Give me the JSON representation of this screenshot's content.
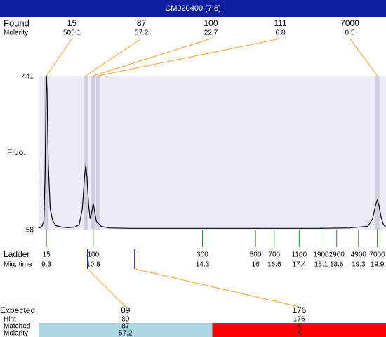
{
  "title": "CM020400 (7:8)",
  "found": {
    "label": "Found",
    "molarity_label": "Molarity",
    "sizes": [
      15,
      87,
      100,
      111,
      7000
    ],
    "molarities": [
      505.1,
      57.2,
      22.7,
      6.8,
      0.5
    ],
    "mig_times": [
      9.3,
      10.56,
      10.8,
      10.96,
      19.9
    ],
    "color": "#f0a030"
  },
  "chart_data": {
    "type": "line",
    "y_label": "Fluo.",
    "x": [
      9.05,
      9.15,
      9.22,
      9.26,
      9.29,
      9.3,
      9.32,
      9.36,
      9.42,
      9.5,
      9.6,
      9.8,
      10.0,
      10.2,
      10.35,
      10.45,
      10.52,
      10.56,
      10.6,
      10.65,
      10.7,
      10.75,
      10.8,
      10.84,
      10.9,
      10.96,
      11.05,
      11.3,
      12,
      13,
      14,
      15,
      16,
      17,
      18,
      19,
      19.6,
      19.75,
      19.85,
      19.9,
      19.95,
      20.02,
      20.1,
      20.18
    ],
    "values": [
      62,
      64,
      80,
      200,
      420,
      441,
      400,
      220,
      110,
      80,
      68,
      64,
      63,
      64,
      70,
      110,
      190,
      219,
      190,
      120,
      85,
      100,
      123,
      105,
      78,
      74,
      66,
      62,
      61,
      61,
      61,
      61,
      61,
      61,
      61,
      62,
      66,
      85,
      120,
      131,
      120,
      90,
      70,
      64
    ],
    "xlim": [
      9.05,
      20.18
    ],
    "ylim": [
      58,
      441
    ],
    "yticks": [
      441,
      58
    ],
    "color": "#000000",
    "background": "#ececf8",
    "band_color": "#cfcfe0"
  },
  "ladder": {
    "label": "Ladder",
    "mig_time_label": "Mig. time",
    "sizes": [
      15,
      100,
      300,
      500,
      700,
      1100,
      1900,
      2900,
      4900,
      7000
    ],
    "mig_times": [
      9.3,
      10.8,
      14.3,
      16,
      16.6,
      17.4,
      18.1,
      18.6,
      19.3,
      19.9
    ],
    "color": "#2a8a2a"
  },
  "expected": {
    "label": "Expected",
    "hint_label": "Hint",
    "matched_label": "Matched",
    "molarity_label": "Molarity",
    "marker_color": "#1010a0",
    "items": [
      {
        "expected": 89,
        "hint": 89,
        "matched": 87,
        "molarity": 57.2,
        "mig_time": 10.62,
        "color": "#add8e6"
      },
      {
        "expected": 176,
        "hint": 176,
        "matched": "X",
        "molarity": "X",
        "mig_time": 12.13,
        "color": "#ff0000"
      }
    ]
  }
}
